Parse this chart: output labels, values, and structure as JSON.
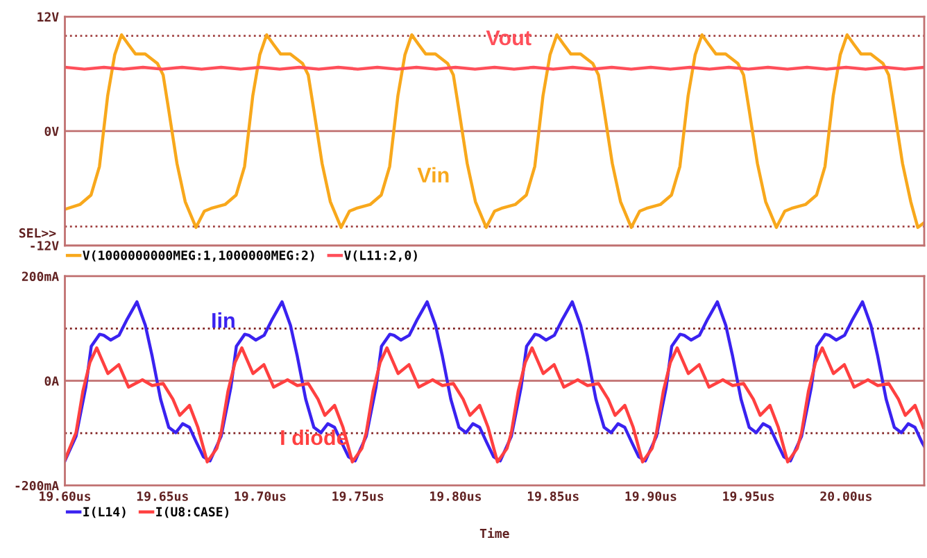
{
  "chart_data": [
    {
      "type": "line",
      "xlim": [
        19.6,
        20.04
      ],
      "ylim": [
        -12,
        12
      ],
      "yticks": [
        {
          "value": 12,
          "label": "12V"
        },
        {
          "value": 0,
          "label": "0V"
        },
        {
          "value": -12,
          "label": "-12V"
        }
      ],
      "tick_labels": "y",
      "legend": "bottom",
      "ref_lines": [
        {
          "axis": "y",
          "value": 0,
          "line_style": "solid",
          "color": "#c07070"
        },
        {
          "axis": "y",
          "value": 10,
          "line_style": "dotted",
          "color": "#a04040"
        },
        {
          "axis": "y",
          "value": -10,
          "line_style": "dotted",
          "color": "#a04040"
        }
      ],
      "annotations": [
        "Vin",
        "Vout",
        "SEL>>"
      ],
      "series": [
        {
          "name": "V(1000000000MEG:1,1000000MEG:2)",
          "color": "#f8a81c",
          "x": [
            19.6,
            19.6077,
            19.6134,
            19.6177,
            19.6219,
            19.6255,
            19.629,
            19.6325,
            19.6361,
            19.6411,
            19.6474,
            19.6503,
            19.6531,
            19.6574,
            19.6616,
            19.6671,
            19.6714,
            19.6749,
            19.682,
            19.6877,
            19.692,
            19.6962,
            19.6998,
            19.7033,
            19.7068,
            19.7104,
            19.7154,
            19.7217,
            19.7246,
            19.7274,
            19.7317,
            19.7359,
            19.7414,
            19.7457,
            19.7492,
            19.7563,
            19.762,
            19.7663,
            19.7705,
            19.7741,
            19.7776,
            19.7811,
            19.7847,
            19.7897,
            19.796,
            19.7989,
            19.8017,
            19.806,
            19.8102,
            19.8157,
            19.82,
            19.8235,
            19.8306,
            19.8363,
            19.8406,
            19.8448,
            19.8484,
            19.8519,
            19.8554,
            19.859,
            19.864,
            19.8703,
            19.8732,
            19.876,
            19.8803,
            19.8845,
            19.89,
            19.8943,
            19.8978,
            19.9049,
            19.9106,
            19.9149,
            19.9191,
            19.9227,
            19.9262,
            19.9297,
            19.9333,
            19.9383,
            19.9446,
            19.9475,
            19.9503,
            19.9546,
            19.9588,
            19.9643,
            19.9686,
            19.9721,
            19.9792,
            19.9849,
            19.9892,
            19.9934,
            19.997,
            20.0005,
            20.004,
            20.0076,
            20.0126,
            20.0189,
            20.0218,
            20.0246,
            20.0289,
            20.0331,
            20.0367,
            20.04
          ],
          "values": [
            -8.2,
            -7.7,
            -6.7,
            -3.7,
            3.7,
            8.0,
            10.1,
            9.1,
            8.1,
            8.1,
            7.1,
            5.9,
            2.3,
            -3.4,
            -7.4,
            -10.1,
            -8.4,
            -8.1,
            -7.7,
            -6.7,
            -3.7,
            3.7,
            8.0,
            10.1,
            9.1,
            8.1,
            8.1,
            7.1,
            5.9,
            2.3,
            -3.4,
            -7.4,
            -10.1,
            -8.4,
            -8.1,
            -7.7,
            -6.7,
            -3.7,
            3.7,
            8.0,
            10.1,
            9.1,
            8.1,
            8.1,
            7.1,
            5.9,
            2.3,
            -3.4,
            -7.4,
            -10.1,
            -8.4,
            -8.1,
            -7.7,
            -6.7,
            -3.7,
            3.7,
            8.0,
            10.1,
            9.1,
            8.1,
            8.1,
            7.1,
            5.9,
            2.3,
            -3.4,
            -7.4,
            -10.1,
            -8.4,
            -8.1,
            -7.7,
            -6.7,
            -3.7,
            3.7,
            8.0,
            10.1,
            9.1,
            8.1,
            8.1,
            7.1,
            5.9,
            2.3,
            -3.4,
            -7.4,
            -10.1,
            -8.4,
            -8.1,
            -7.7,
            -6.7,
            -3.7,
            3.7,
            8.0,
            10.1,
            9.1,
            8.1,
            8.1,
            7.1,
            5.9,
            2.3,
            -3.4,
            -7.4,
            -10.1,
            -9.6
          ]
        },
        {
          "name": "V(L11:2,0)",
          "color": "#ff4f5a",
          "x": [
            19.6,
            19.61,
            19.62,
            19.63,
            19.64,
            19.65,
            19.66,
            19.67,
            19.68,
            19.69,
            19.7,
            19.71,
            19.72,
            19.73,
            19.74,
            19.75,
            19.76,
            19.77,
            19.78,
            19.79,
            19.8,
            19.81,
            19.82,
            19.83,
            19.84,
            19.85,
            19.86,
            19.87,
            19.88,
            19.89,
            19.9,
            19.91,
            19.92,
            19.93,
            19.94,
            19.95,
            19.96,
            19.97,
            19.98,
            19.99,
            20.0,
            20.01,
            20.02,
            20.03,
            20.04
          ],
          "values": [
            6.7,
            6.5,
            6.7,
            6.5,
            6.7,
            6.5,
            6.7,
            6.5,
            6.7,
            6.5,
            6.7,
            6.5,
            6.7,
            6.5,
            6.7,
            6.5,
            6.7,
            6.5,
            6.7,
            6.5,
            6.7,
            6.5,
            6.7,
            6.5,
            6.7,
            6.5,
            6.7,
            6.5,
            6.7,
            6.5,
            6.7,
            6.5,
            6.7,
            6.5,
            6.7,
            6.5,
            6.7,
            6.5,
            6.7,
            6.5,
            6.7,
            6.5,
            6.7,
            6.5,
            6.7
          ]
        }
      ]
    },
    {
      "type": "line",
      "xlim": [
        19.6,
        20.04
      ],
      "xticks": [
        {
          "value": 19.6,
          "label": "19.60us"
        },
        {
          "value": 19.65,
          "label": "19.65us"
        },
        {
          "value": 19.7,
          "label": "19.70us"
        },
        {
          "value": 19.75,
          "label": "19.75us"
        },
        {
          "value": 19.8,
          "label": "19.80us"
        },
        {
          "value": 19.85,
          "label": "19.85us"
        },
        {
          "value": 19.9,
          "label": "19.90us"
        },
        {
          "value": 19.95,
          "label": "19.95us"
        },
        {
          "value": 20.0,
          "label": "20.00us"
        }
      ],
      "ylim": [
        -200,
        200
      ],
      "yticks": [
        {
          "value": 200,
          "label": "200mA"
        },
        {
          "value": 0,
          "label": "0A"
        },
        {
          "value": -200,
          "label": "-200mA"
        }
      ],
      "xlabel": "Time",
      "legend": "bottom",
      "ref_lines": [
        {
          "axis": "y",
          "value": 0,
          "line_style": "solid",
          "color": "#c07070"
        },
        {
          "axis": "y",
          "value": 100,
          "line_style": "dotted",
          "color": "#802020"
        },
        {
          "axis": "y",
          "value": -100,
          "line_style": "dotted",
          "color": "#802020"
        }
      ],
      "annotations": [
        "Iin",
        "I diode"
      ],
      "series": [
        {
          "name": "I(L14)",
          "color": "#3a22f0",
          "x": [
            19.6,
            19.6057,
            19.6107,
            19.6135,
            19.6178,
            19.6199,
            19.6234,
            19.6277,
            19.6319,
            19.6369,
            19.6412,
            19.6447,
            19.649,
            19.6532,
            19.6568,
            19.6603,
            19.6638,
            19.6674,
            19.6709,
            19.6743,
            19.68,
            19.685,
            19.6878,
            19.6921,
            19.6942,
            19.6977,
            19.702,
            19.7062,
            19.7112,
            19.7155,
            19.719,
            19.7233,
            19.7275,
            19.7311,
            19.7346,
            19.7381,
            19.7417,
            19.7452,
            19.7486,
            19.7543,
            19.7593,
            19.7621,
            19.7664,
            19.7685,
            19.772,
            19.7763,
            19.7805,
            19.7855,
            19.7898,
            19.7933,
            19.7976,
            19.8018,
            19.8054,
            19.8089,
            19.8124,
            19.816,
            19.8195,
            19.8229,
            19.8286,
            19.8336,
            19.8364,
            19.8407,
            19.8428,
            19.8463,
            19.8506,
            19.8548,
            19.8598,
            19.8641,
            19.8676,
            19.8719,
            19.8761,
            19.8797,
            19.8832,
            19.8867,
            19.8903,
            19.8938,
            19.8972,
            19.9029,
            19.9079,
            19.9107,
            19.915,
            19.9171,
            19.9206,
            19.9249,
            19.9291,
            19.9341,
            19.9384,
            19.9419,
            19.9462,
            19.9504,
            19.954,
            19.9575,
            19.961,
            19.9646,
            19.9681,
            19.9715,
            19.9772,
            19.9822,
            19.985,
            19.9893,
            19.9914,
            19.9949,
            19.9992,
            20.0034,
            20.0084,
            20.0127,
            20.0162,
            20.0205,
            20.0247,
            20.0283,
            20.0318,
            20.0353,
            20.0389,
            20.04
          ],
          "values": [
            -153,
            -106,
            -12,
            66,
            89,
            87,
            78,
            87,
            118,
            151,
            106,
            47,
            -35,
            -89,
            -99,
            -82,
            -89,
            -118,
            -145,
            -153,
            -106,
            -12,
            66,
            89,
            87,
            78,
            87,
            118,
            151,
            106,
            47,
            -35,
            -89,
            -99,
            -82,
            -89,
            -118,
            -145,
            -153,
            -106,
            -12,
            66,
            89,
            87,
            78,
            87,
            118,
            151,
            106,
            47,
            -35,
            -89,
            -99,
            -82,
            -89,
            -118,
            -145,
            -153,
            -106,
            -12,
            66,
            89,
            87,
            78,
            87,
            118,
            151,
            106,
            47,
            -35,
            -89,
            -99,
            -82,
            -89,
            -118,
            -145,
            -153,
            -106,
            -12,
            66,
            89,
            87,
            78,
            87,
            118,
            151,
            106,
            47,
            -35,
            -89,
            -99,
            -82,
            -89,
            -118,
            -145,
            -153,
            -106,
            -12,
            66,
            89,
            87,
            78,
            87,
            118,
            151,
            106,
            47,
            -35,
            -89,
            -99,
            -82,
            -89,
            -118,
            -125
          ]
        },
        {
          "name": "I(U8:CASE)",
          "color": "#ff4040",
          "x": [
            19.6,
            19.6057,
            19.6092,
            19.6128,
            19.6163,
            19.622,
            19.6276,
            19.6326,
            19.6397,
            19.6447,
            19.6503,
            19.6553,
            19.6588,
            19.6638,
            19.6681,
            19.6729,
            19.6778,
            19.68,
            19.6835,
            19.6871,
            19.6906,
            19.6963,
            19.7019,
            19.7069,
            19.714,
            19.719,
            19.7246,
            19.7296,
            19.7331,
            19.7381,
            19.7424,
            19.7472,
            19.7521,
            19.7543,
            19.7578,
            19.7614,
            19.7649,
            19.7706,
            19.7762,
            19.7812,
            19.7883,
            19.7933,
            19.7989,
            19.8039,
            19.8074,
            19.8124,
            19.8167,
            19.8215,
            19.8264,
            19.8286,
            19.8321,
            19.8357,
            19.8392,
            19.8449,
            19.8505,
            19.8555,
            19.8626,
            19.8676,
            19.8732,
            19.8782,
            19.8817,
            19.8867,
            19.891,
            19.8958,
            19.9007,
            19.9029,
            19.9064,
            19.91,
            19.9135,
            19.9192,
            19.9248,
            19.9298,
            19.9369,
            19.9419,
            19.9475,
            19.9525,
            19.956,
            19.961,
            19.9653,
            19.9701,
            19.975,
            19.9772,
            19.9807,
            19.9843,
            19.9878,
            19.9935,
            19.9991,
            20.0041,
            20.0112,
            20.0162,
            20.0218,
            20.0268,
            20.0303,
            20.0353,
            20.0396
          ],
          "values": [
            -151,
            -99,
            -20,
            35,
            63,
            14,
            31,
            -12,
            2,
            -9,
            -5,
            -35,
            -66,
            -47,
            -89,
            -155,
            -129,
            -99,
            -20,
            35,
            63,
            14,
            31,
            -12,
            2,
            -9,
            -5,
            -35,
            -66,
            -47,
            -89,
            -155,
            -129,
            -99,
            -20,
            35,
            63,
            14,
            31,
            -12,
            2,
            -9,
            -5,
            -35,
            -66,
            -47,
            -89,
            -155,
            -129,
            -99,
            -20,
            35,
            63,
            14,
            31,
            -12,
            2,
            -9,
            -5,
            -35,
            -66,
            -47,
            -89,
            -155,
            -129,
            -99,
            -20,
            35,
            63,
            14,
            31,
            -12,
            2,
            -9,
            -5,
            -35,
            -66,
            -47,
            -89,
            -155,
            -129,
            -99,
            -20,
            35,
            63,
            14,
            31,
            -12,
            2,
            -9,
            -5,
            -35,
            -66,
            -47,
            -89
          ]
        }
      ]
    }
  ]
}
